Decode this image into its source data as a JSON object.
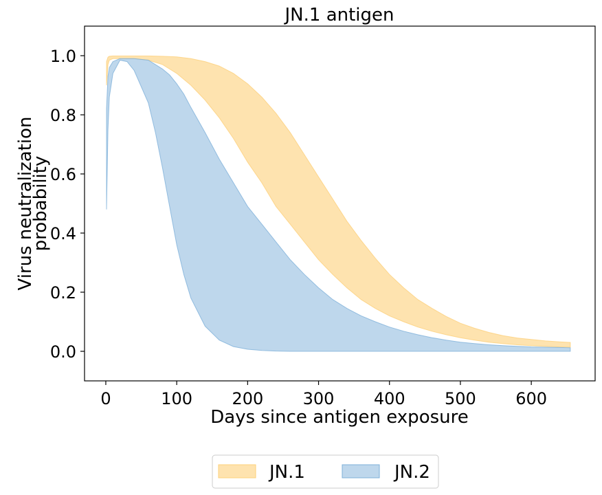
{
  "chart_data": {
    "type": "area",
    "title": "JN.1 antigen",
    "xlabel": "Days since antigen exposure",
    "ylabel": [
      "Virus neutralization",
      "probability"
    ],
    "xlim": [
      -30,
      690
    ],
    "ylim": [
      -0.1,
      1.1
    ],
    "xticks": [
      0,
      100,
      200,
      300,
      400,
      500,
      600
    ],
    "yticks": [
      0.0,
      0.2,
      0.4,
      0.6,
      0.8,
      1.0
    ],
    "xtick_labels": [
      "0",
      "100",
      "200",
      "300",
      "400",
      "500",
      "600"
    ],
    "ytick_labels": [
      "0.0",
      "0.2",
      "0.4",
      "0.6",
      "0.8",
      "1.0"
    ],
    "grid": false,
    "legend_position": "bottom-center, below plot",
    "series": [
      {
        "name": "JN.1",
        "color": "#fdd07a",
        "opacity": 0.6,
        "x": [
          1,
          3,
          5,
          10,
          20,
          40,
          60,
          80,
          100,
          120,
          140,
          160,
          180,
          200,
          220,
          240,
          260,
          280,
          300,
          320,
          340,
          360,
          380,
          400,
          420,
          440,
          460,
          480,
          500,
          520,
          540,
          560,
          580,
          600,
          620,
          640,
          655
        ],
        "upper": [
          0.98,
          0.995,
          0.998,
          0.999,
          0.999,
          0.999,
          0.999,
          0.998,
          0.996,
          0.99,
          0.98,
          0.965,
          0.94,
          0.905,
          0.86,
          0.805,
          0.74,
          0.665,
          0.59,
          0.515,
          0.44,
          0.375,
          0.315,
          0.26,
          0.215,
          0.175,
          0.145,
          0.118,
          0.095,
          0.078,
          0.064,
          0.053,
          0.045,
          0.04,
          0.035,
          0.032,
          0.03
        ],
        "lower": [
          0.9,
          0.97,
          0.985,
          0.99,
          0.99,
          0.99,
          0.985,
          0.97,
          0.94,
          0.9,
          0.85,
          0.79,
          0.72,
          0.64,
          0.57,
          0.49,
          0.43,
          0.37,
          0.31,
          0.26,
          0.215,
          0.175,
          0.145,
          0.12,
          0.1,
          0.082,
          0.068,
          0.056,
          0.046,
          0.038,
          0.031,
          0.026,
          0.022,
          0.019,
          0.017,
          0.015,
          0.014
        ]
      },
      {
        "name": "JN.2",
        "color": "#7eb0d9",
        "opacity": 0.5,
        "x": [
          1,
          3,
          5,
          10,
          20,
          30,
          40,
          60,
          70,
          80,
          90,
          100,
          110,
          120,
          140,
          160,
          180,
          200,
          220,
          240,
          260,
          280,
          300,
          320,
          340,
          360,
          380,
          400,
          420,
          440,
          460,
          480,
          500,
          520,
          540,
          560,
          580,
          600,
          620,
          640,
          655
        ],
        "upper": [
          0.82,
          0.93,
          0.96,
          0.98,
          0.99,
          0.99,
          0.99,
          0.985,
          0.97,
          0.955,
          0.935,
          0.905,
          0.87,
          0.825,
          0.74,
          0.65,
          0.57,
          0.49,
          0.43,
          0.37,
          0.31,
          0.26,
          0.215,
          0.175,
          0.145,
          0.12,
          0.1,
          0.082,
          0.068,
          0.056,
          0.046,
          0.038,
          0.031,
          0.026,
          0.022,
          0.019,
          0.017,
          0.015,
          0.014,
          0.013,
          0.012
        ],
        "lower": [
          0.48,
          0.75,
          0.86,
          0.94,
          0.985,
          0.98,
          0.95,
          0.84,
          0.74,
          0.62,
          0.49,
          0.36,
          0.26,
          0.18,
          0.085,
          0.038,
          0.016,
          0.007,
          0.003,
          0.001,
          0.0,
          0.0,
          0.0,
          0.0,
          0.0,
          0.0,
          0.0,
          0.0,
          0.0,
          0.0,
          0.0,
          0.0,
          0.0,
          0.0,
          0.0,
          0.0,
          0.0,
          0.0,
          0.0,
          0.0,
          0.0
        ]
      }
    ]
  }
}
